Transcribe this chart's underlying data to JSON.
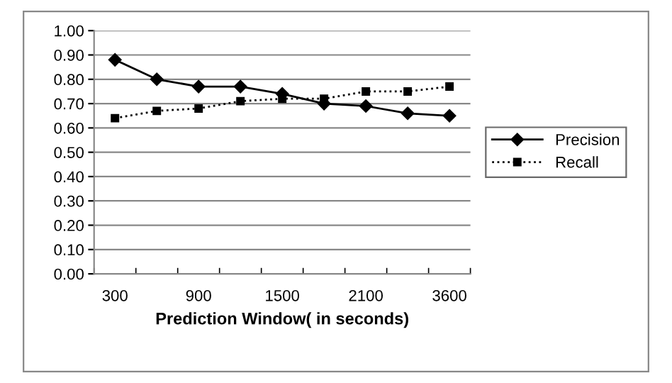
{
  "chart_data": {
    "type": "line",
    "xlabel": "Prediction Window( in seconds)",
    "categories": [
      "300",
      null,
      "900",
      null,
      "1500",
      null,
      "2100",
      null,
      "3600"
    ],
    "series": [
      {
        "name": "Precision",
        "color": "#000000",
        "marker": "diamond",
        "line_style": "solid",
        "values": [
          0.88,
          0.8,
          0.77,
          0.77,
          0.74,
          0.7,
          0.69,
          0.66,
          0.65
        ]
      },
      {
        "name": "Recall",
        "color": "#000000",
        "marker": "square",
        "line_style": "dotted",
        "values": [
          0.64,
          0.67,
          0.68,
          0.71,
          0.72,
          0.72,
          0.75,
          0.75,
          0.77
        ]
      }
    ],
    "ylim": [
      0,
      1
    ],
    "yticks": [
      {
        "value": 0,
        "label": "0.00"
      },
      {
        "value": 0.1,
        "label": "0.10"
      },
      {
        "value": 0.2,
        "label": "0.20"
      },
      {
        "value": 0.3,
        "label": "0.30"
      },
      {
        "value": 0.4,
        "label": "0.40"
      },
      {
        "value": 0.5,
        "label": "0.50"
      },
      {
        "value": 0.6,
        "label": "0.60"
      },
      {
        "value": 0.7,
        "label": "0.70"
      },
      {
        "value": 0.8,
        "label": "0.80"
      },
      {
        "value": 0.9,
        "label": "0.90"
      },
      {
        "value": 1,
        "label": "1.00"
      }
    ],
    "grid": "y",
    "legend": "right"
  }
}
